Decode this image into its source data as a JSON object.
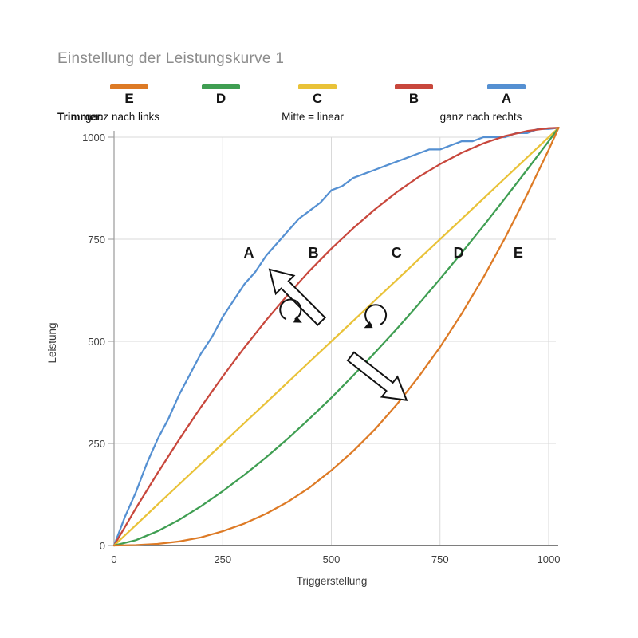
{
  "page": {
    "title": "Einstellung der Leistungskurve 1"
  },
  "legend": {
    "items": [
      {
        "label": "E",
        "color": "#dd7a25"
      },
      {
        "label": "D",
        "color": "#3f9e52"
      },
      {
        "label": "C",
        "color": "#e9c238"
      },
      {
        "label": "B",
        "color": "#c8473c"
      },
      {
        "label": "A",
        "color": "#5590d2"
      }
    ]
  },
  "trimmer": {
    "prefix": "Trimmer:",
    "left": "ganz nach links",
    "mid": "Mitte = linear",
    "right": "ganz nach rechts"
  },
  "chart_data": {
    "type": "line",
    "title": "Einstellung der Leistungskurve 1",
    "xlabel": "Triggerstellung",
    "ylabel": "Leistung",
    "xlim": [
      0,
      1040
    ],
    "ylim": [
      0,
      1040
    ],
    "xticks": [
      0,
      250,
      500,
      750,
      1000
    ],
    "yticks": [
      0,
      250,
      500,
      750,
      1000
    ],
    "grid": true,
    "colors": {
      "grid": "#d9d9d9",
      "axis": "#9a9a9a",
      "baseline": "#545454",
      "annotation": "#111111"
    },
    "series": [
      {
        "name": "A",
        "color": "#5590d2",
        "x": [
          0,
          25,
          50,
          75,
          100,
          125,
          150,
          175,
          200,
          225,
          250,
          275,
          300,
          325,
          350,
          375,
          400,
          425,
          450,
          475,
          500,
          525,
          550,
          575,
          600,
          625,
          650,
          675,
          700,
          725,
          750,
          775,
          800,
          825,
          850,
          875,
          900,
          925,
          950,
          975,
          1000,
          1023
        ],
        "y": [
          0,
          70,
          130,
          200,
          260,
          310,
          370,
          420,
          470,
          510,
          560,
          600,
          640,
          670,
          710,
          740,
          770,
          800,
          820,
          840,
          870,
          880,
          900,
          910,
          920,
          930,
          940,
          950,
          960,
          970,
          970,
          980,
          990,
          990,
          1000,
          1000,
          1000,
          1010,
          1010,
          1020,
          1020,
          1023
        ]
      },
      {
        "name": "B",
        "color": "#c8473c",
        "x": [
          0,
          50,
          100,
          150,
          200,
          250,
          300,
          350,
          400,
          450,
          500,
          550,
          600,
          650,
          700,
          750,
          800,
          850,
          900,
          950,
          1000,
          1023
        ],
        "y": [
          0,
          91,
          177,
          260,
          339,
          414,
          485,
          552,
          614,
          673,
          727,
          777,
          823,
          865,
          902,
          934,
          962,
          985,
          1003,
          1015,
          1022,
          1023
        ]
      },
      {
        "name": "C",
        "color": "#e9c238",
        "x": [
          0,
          50,
          100,
          150,
          200,
          250,
          300,
          350,
          400,
          450,
          500,
          550,
          600,
          650,
          700,
          750,
          800,
          850,
          900,
          950,
          1000,
          1023
        ],
        "y": [
          0,
          50,
          100,
          150,
          200,
          250,
          300,
          350,
          400,
          450,
          500,
          550,
          600,
          650,
          700,
          750,
          800,
          850,
          900,
          950,
          1000,
          1023
        ]
      },
      {
        "name": "D",
        "color": "#3f9e52",
        "x": [
          0,
          50,
          100,
          150,
          200,
          250,
          300,
          350,
          400,
          450,
          500,
          550,
          600,
          650,
          700,
          750,
          800,
          850,
          900,
          950,
          1000,
          1023
        ],
        "y": [
          0,
          13,
          35,
          63,
          96,
          133,
          173,
          216,
          262,
          311,
          362,
          416,
          472,
          530,
          590,
          653,
          717,
          783,
          851,
          920,
          990,
          1023
        ]
      },
      {
        "name": "E",
        "color": "#dd7a25",
        "x": [
          0,
          50,
          100,
          150,
          200,
          250,
          300,
          350,
          400,
          450,
          500,
          550,
          600,
          650,
          700,
          750,
          800,
          850,
          900,
          950,
          1000,
          1023
        ],
        "y": [
          0,
          1,
          4,
          10,
          20,
          35,
          54,
          78,
          107,
          142,
          184,
          231,
          284,
          345,
          412,
          486,
          568,
          657,
          754,
          859,
          969,
          1023
        ]
      }
    ],
    "series_labels": [
      {
        "text": "A",
        "x": 310,
        "y": 705
      },
      {
        "text": "B",
        "x": 459,
        "y": 705
      },
      {
        "text": "C",
        "x": 650,
        "y": 705
      },
      {
        "text": "D",
        "x": 793,
        "y": 705
      },
      {
        "text": "E",
        "x": 930,
        "y": 705
      }
    ],
    "annotations": {
      "open_arrows": [
        {
          "tail": [
            477,
            549
          ],
          "tip": [
            358,
            676
          ]
        },
        {
          "tail": [
            545,
            463
          ],
          "tip": [
            673,
            356
          ]
        }
      ],
      "rotate_arrows": [
        {
          "center": [
            406,
            531
          ],
          "clockwise": true,
          "radius_px": 13
        },
        {
          "center": [
            602,
            518
          ],
          "clockwise": false,
          "radius_px": 13
        }
      ]
    }
  }
}
